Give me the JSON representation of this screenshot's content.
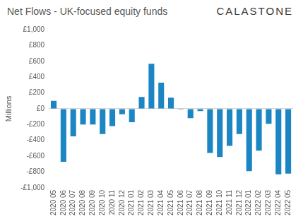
{
  "chart_data": {
    "type": "bar",
    "title": "Net Flows - UK-focused equity funds",
    "annotations": [
      "CALASTONE"
    ],
    "y_label": "Millions",
    "categories": [
      "2020 05",
      "2020 06",
      "2020 07",
      "2020 08",
      "2020 09",
      "2020 10",
      "2020 11",
      "2020 12",
      "2021 01",
      "2021 02",
      "2021 03",
      "2021 04",
      "2021 05",
      "2021 06",
      "2021 07",
      "2021 08",
      "2021 09",
      "2021 10",
      "2021 11",
      "2021 12",
      "2022 01",
      "2022 02",
      "2022 03",
      "2022 04",
      "2022 05"
    ],
    "values": [
      100,
      -670,
      -350,
      -200,
      -200,
      -320,
      -220,
      -70,
      -170,
      150,
      570,
      330,
      140,
      -10,
      -120,
      -30,
      -560,
      -610,
      -470,
      -320,
      -790,
      -530,
      -190,
      -830,
      -820
    ],
    "color": "#1b86c3",
    "ylim": [
      -1000,
      1000
    ],
    "yticks": [
      {
        "value": -1000,
        "label": "-£1,000"
      },
      {
        "value": -800,
        "label": "-£800"
      },
      {
        "value": -600,
        "label": "-£600"
      },
      {
        "value": -400,
        "label": "-£400"
      },
      {
        "value": -200,
        "label": "-£200"
      },
      {
        "value": 0,
        "label": "£0"
      },
      {
        "value": 200,
        "label": "£200"
      },
      {
        "value": 400,
        "label": "£400"
      },
      {
        "value": 600,
        "label": "£600"
      },
      {
        "value": 800,
        "label": "£800"
      },
      {
        "value": 1000,
        "label": "£1,000"
      }
    ],
    "grid": false
  }
}
